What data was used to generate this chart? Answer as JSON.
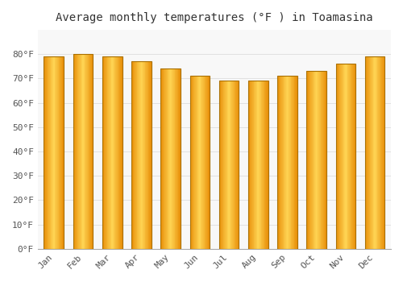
{
  "title": "Average monthly temperatures (°F ) in Toamasina",
  "months": [
    "Jan",
    "Feb",
    "Mar",
    "Apr",
    "May",
    "Jun",
    "Jul",
    "Aug",
    "Sep",
    "Oct",
    "Nov",
    "Dec"
  ],
  "values": [
    79,
    80,
    79,
    77,
    74,
    71,
    69,
    69,
    71,
    73,
    76,
    79
  ],
  "bar_left_color": "#F5A800",
  "bar_center_color": "#FFD040",
  "bar_edge_color": "#CC8800",
  "ylim": [
    0,
    90
  ],
  "yticks": [
    0,
    10,
    20,
    30,
    40,
    50,
    60,
    70,
    80
  ],
  "ytick_labels": [
    "0°F",
    "10°F",
    "20°F",
    "30°F",
    "40°F",
    "50°F",
    "60°F",
    "70°F",
    "80°F"
  ],
  "bg_color": "#FFFFFF",
  "plot_bg_color": "#F8F8F8",
  "title_fontsize": 10,
  "tick_fontsize": 8,
  "grid_color": "#DDDDDD"
}
